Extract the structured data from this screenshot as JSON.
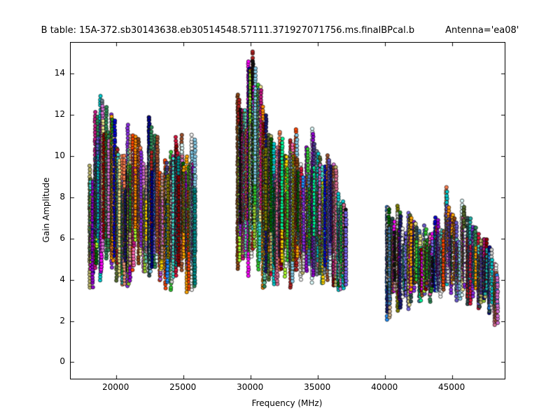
{
  "chart_data": {
    "type": "scatter",
    "title": "B table: 15A-372.sb30143638.eb30514548.57111.371927071756.ms.finalBPcal.b",
    "annotation": "Antenna='ea08'",
    "xlabel": "Frequency (MHz)",
    "ylabel": "Gain Amplitude",
    "xlim": [
      16600,
      48900
    ],
    "ylim": [
      -0.8,
      15.5
    ],
    "xticks": [
      20000,
      25000,
      30000,
      35000,
      40000,
      45000
    ],
    "yticks": [
      0,
      2,
      4,
      6,
      8,
      10,
      12,
      14
    ],
    "grid": false,
    "legend": "none",
    "marker": {
      "shape": "circle",
      "radius_px": 2.6,
      "edge_color": "#000000"
    },
    "background": "#ffffff",
    "axes_edge_color": "#000000",
    "seed": 1337,
    "cluster_x_span": 220,
    "series_per_cluster": 8,
    "points_per_unit": 6.5,
    "palette": [
      "#8b0000",
      "#b22222",
      "#dc143c",
      "#ff4500",
      "#ff7f50",
      "#ff8c00",
      "#ffa500",
      "#ffd700",
      "#f0e68c",
      "#bdb76b",
      "#808000",
      "#9acd32",
      "#32cd32",
      "#228b22",
      "#006400",
      "#2e8b57",
      "#66cdaa",
      "#20b2aa",
      "#008b8b",
      "#00ced1",
      "#40e0d0",
      "#87ceeb",
      "#4682b4",
      "#1e90ff",
      "#0000cd",
      "#00008b",
      "#191970",
      "#483d8b",
      "#6a5acd",
      "#8a2be2",
      "#9400d3",
      "#ba55d3",
      "#da70d6",
      "#ff00ff",
      "#c71585",
      "#ff69b4",
      "#db7093",
      "#a0522d",
      "#8b4513",
      "#d2b48c",
      "#bc8f8f",
      "#708090",
      "#2f4f4f",
      "#d3d3d3",
      "#f5f5f5",
      "#556b2f",
      "#7b68ee",
      "#00fa9a",
      "#adff2f",
      "#e9967a",
      "#111111",
      "#e0ffff"
    ],
    "clusters": [
      [
        18150,
        3.6,
        9.5
      ],
      [
        18550,
        4.6,
        12.1
      ],
      [
        18950,
        4.0,
        12.9
      ],
      [
        19350,
        5.0,
        12.4
      ],
      [
        19750,
        4.6,
        12.0
      ],
      [
        20150,
        4.0,
        10.4
      ],
      [
        20550,
        3.8,
        10.0
      ],
      [
        20950,
        3.7,
        11.5
      ],
      [
        21350,
        4.5,
        11.0
      ],
      [
        21750,
        4.8,
        10.8
      ],
      [
        22150,
        4.4,
        9.6
      ],
      [
        22550,
        4.2,
        11.9
      ],
      [
        22950,
        4.6,
        11.0
      ],
      [
        23350,
        4.0,
        9.2
      ],
      [
        23750,
        3.6,
        9.8
      ],
      [
        24150,
        3.5,
        10.2
      ],
      [
        24550,
        4.2,
        10.9
      ],
      [
        24950,
        4.5,
        11.0
      ],
      [
        25350,
        3.4,
        10.0
      ],
      [
        25750,
        3.5,
        11.0
      ],
      [
        29150,
        4.5,
        13.0
      ],
      [
        29550,
        5.0,
        12.2
      ],
      [
        29950,
        4.2,
        14.6
      ],
      [
        30250,
        5.5,
        15.1
      ],
      [
        30650,
        4.5,
        13.5
      ],
      [
        31050,
        3.6,
        12.4
      ],
      [
        31450,
        4.0,
        11.0
      ],
      [
        31850,
        3.8,
        10.6
      ],
      [
        32250,
        4.5,
        11.2
      ],
      [
        32650,
        4.2,
        10.0
      ],
      [
        33050,
        3.6,
        10.8
      ],
      [
        33450,
        4.5,
        11.3
      ],
      [
        33850,
        4.0,
        9.6
      ],
      [
        34250,
        4.4,
        10.4
      ],
      [
        34650,
        3.9,
        11.3
      ],
      [
        35050,
        4.3,
        10.2
      ],
      [
        35450,
        3.8,
        9.5
      ],
      [
        35850,
        4.0,
        10.0
      ],
      [
        36250,
        3.7,
        9.6
      ],
      [
        36650,
        3.5,
        8.2
      ],
      [
        37000,
        3.6,
        7.8
      ],
      [
        40250,
        2.1,
        7.5
      ],
      [
        40650,
        3.4,
        7.0
      ],
      [
        41050,
        2.5,
        7.6
      ],
      [
        41450,
        3.2,
        6.5
      ],
      [
        41850,
        2.6,
        7.2
      ],
      [
        42250,
        3.5,
        6.8
      ],
      [
        42650,
        3.0,
        6.4
      ],
      [
        43050,
        3.3,
        6.6
      ],
      [
        43450,
        2.9,
        6.2
      ],
      [
        43850,
        3.5,
        7.0
      ],
      [
        44250,
        3.2,
        6.4
      ],
      [
        44650,
        3.8,
        8.5
      ],
      [
        45050,
        3.4,
        7.2
      ],
      [
        45450,
        3.0,
        6.8
      ],
      [
        45850,
        3.3,
        7.8
      ],
      [
        46250,
        2.8,
        7.0
      ],
      [
        46650,
        3.2,
        6.6
      ],
      [
        47050,
        2.6,
        6.2
      ],
      [
        47450,
        3.0,
        6.0
      ],
      [
        47850,
        2.4,
        5.6
      ],
      [
        48250,
        1.8,
        4.8
      ]
    ]
  }
}
